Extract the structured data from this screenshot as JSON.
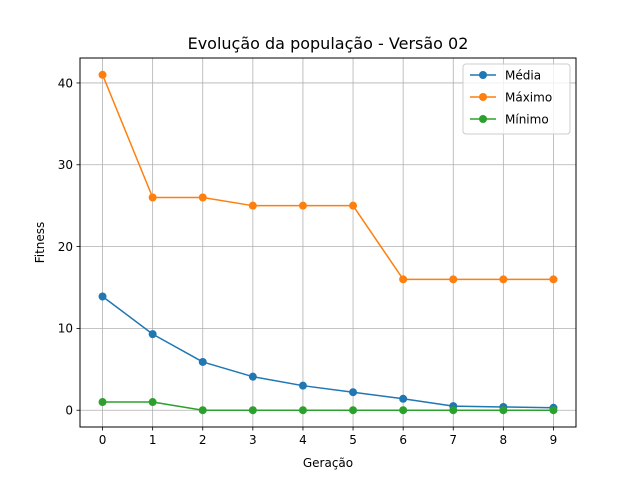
{
  "chart_data": {
    "type": "line",
    "title": "Evolução da população - Versão 02",
    "xlabel": "Geração",
    "ylabel": "Fitness",
    "x": [
      0,
      1,
      2,
      3,
      4,
      5,
      6,
      7,
      8,
      9
    ],
    "xlim": [
      -0.45,
      9.45
    ],
    "ylim": [
      -2.05,
      43.05
    ],
    "xticks": [
      0,
      1,
      2,
      3,
      4,
      5,
      6,
      7,
      8,
      9
    ],
    "yticks": [
      0,
      10,
      20,
      30,
      40
    ],
    "grid": true,
    "legend_position": "top-right",
    "series": [
      {
        "name": "Média",
        "color": "#1f77b4",
        "values": [
          13.9,
          9.3,
          5.9,
          4.1,
          3.0,
          2.2,
          1.4,
          0.5,
          0.4,
          0.3
        ]
      },
      {
        "name": "Máximo",
        "color": "#ff7f0e",
        "values": [
          41,
          26,
          26,
          25,
          25,
          25,
          16,
          16,
          16,
          16
        ]
      },
      {
        "name": "Mínimo",
        "color": "#2ca02c",
        "values": [
          1,
          1,
          0,
          0,
          0,
          0,
          0,
          0,
          0,
          0
        ]
      }
    ]
  }
}
